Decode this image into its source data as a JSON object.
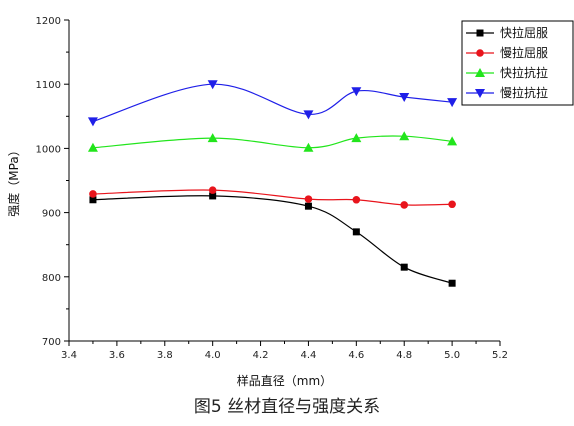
{
  "chart_data": {
    "type": "line",
    "title": "",
    "caption": "图5  丝材直径与强度关系",
    "xlabel": "样品直径（mm）",
    "ylabel": "强度（MPa）",
    "xlim": [
      3.4,
      5.2
    ],
    "ylim": [
      700,
      1200
    ],
    "xticks": [
      3.4,
      3.6,
      3.8,
      4.0,
      4.2,
      4.4,
      4.6,
      4.8,
      5.0,
      5.2
    ],
    "xtick_labels": [
      "3.4",
      "3.6",
      "3.8",
      "4.0",
      "4.2",
      "4.4",
      "4.6",
      "4.8",
      "5.0",
      "5.2"
    ],
    "yticks": [
      700,
      800,
      900,
      1000,
      1100,
      1200
    ],
    "ytick_labels": [
      "700",
      "800",
      "900",
      "1000",
      "1100",
      "1200"
    ],
    "grid": false,
    "legend_position": "top-right",
    "x": [
      3.5,
      4.0,
      4.4,
      4.6,
      4.8,
      5.0
    ],
    "series": [
      {
        "name": "快拉屈服",
        "color": "#000000",
        "marker": "square",
        "values": [
          920,
          926,
          910,
          870,
          815,
          790
        ]
      },
      {
        "name": "慢拉屈服",
        "color": "#e8141c",
        "marker": "circle",
        "values": [
          929,
          935,
          921,
          920,
          912,
          913
        ]
      },
      {
        "name": "快拉抗拉",
        "color": "#22e51c",
        "marker": "triangle-up",
        "values": [
          1001,
          1016,
          1001,
          1016,
          1019,
          1011
        ]
      },
      {
        "name": "慢拉抗拉",
        "color": "#1f1fe8",
        "marker": "triangle-down",
        "values": [
          1042,
          1100,
          1053,
          1089,
          1080,
          1072
        ]
      }
    ]
  }
}
